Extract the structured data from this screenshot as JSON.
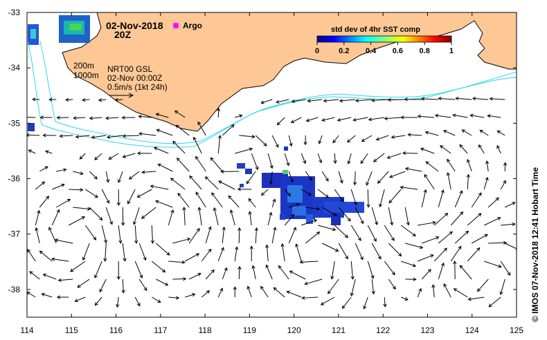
{
  "header": {
    "date": "02-Nov-2018",
    "time": "20Z",
    "argo_label": "Argo"
  },
  "legend": {
    "title": "std dev of 4hr SST comp",
    "ticks": [
      "0",
      "0.2",
      "0.4",
      "0.6",
      "0.8",
      "1"
    ]
  },
  "isobaths": {
    "shallow": "200m",
    "deep": "1000m"
  },
  "current_info": {
    "product": "NRT00 GSL",
    "datetime": "02-Nov 00:00Z",
    "scale": "0.5m/s (1kt 24h)"
  },
  "axes": {
    "x_ticks": [
      "114",
      "115",
      "116",
      "117",
      "118",
      "119",
      "120",
      "121",
      "122",
      "123",
      "124",
      "125"
    ],
    "y_ticks": [
      "-33",
      "-34",
      "-35",
      "-36",
      "-37",
      "-38"
    ],
    "xlim": [
      114,
      125
    ],
    "ylim": [
      -38.5,
      -33
    ]
  },
  "credit": "© IMOS 07-Nov-2018 12:41 Hobart Time",
  "colors": {
    "land": "#fdc896",
    "isobath": "#29d8e6",
    "frame": "#000000",
    "argo": "#ff00ff"
  }
}
